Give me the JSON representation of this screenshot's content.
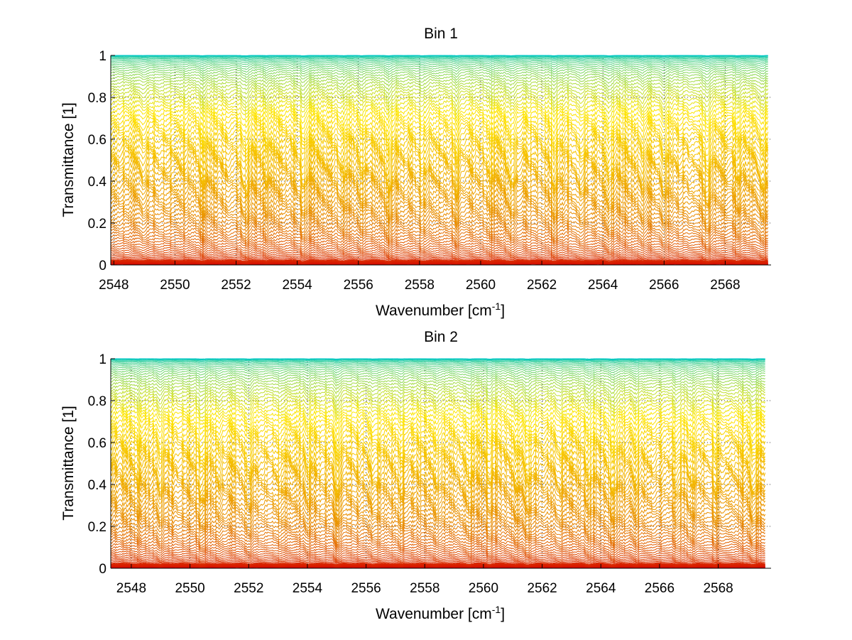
{
  "chart_data": [
    {
      "type": "line",
      "title": "Bin 1",
      "xlabel": "Wavenumber [cm",
      "xlabel_sup": "-1",
      "xlabel_end": "]",
      "ylabel": "Transmittance [1]",
      "xlim": [
        2547.9,
        2569.5
      ],
      "ylim": [
        0,
        1
      ],
      "x_data_range": [
        2547.9,
        2569.4
      ],
      "xticks": [
        2548,
        2550,
        2552,
        2554,
        2556,
        2558,
        2560,
        2562,
        2564,
        2566,
        2568
      ],
      "yticks": [
        0,
        0.2,
        0.4,
        0.6,
        0.8,
        1
      ],
      "ytick_labels": [
        "0",
        "0.2",
        "0.4",
        "0.6",
        "0.8",
        "1"
      ],
      "grid": true,
      "series_count": 80,
      "series_levels_min": 0.005,
      "series_levels_max": 1.0,
      "color_scale": [
        "#d40000",
        "#e88a00",
        "#ffe600",
        "#00c8c8"
      ],
      "absorption_lines": [
        2549.0,
        2550.9,
        2552.3,
        2553.0,
        2554.2,
        2555.5,
        2556.1,
        2557.0,
        2558.1,
        2559.2,
        2560.3,
        2561.0,
        2562.4,
        2563.3,
        2564.2,
        2565.3,
        2566.0,
        2567.4,
        2568.4,
        2569.2
      ]
    },
    {
      "type": "line",
      "title": "Bin 2",
      "xlabel": "Wavenumber [cm",
      "xlabel_sup": "-1",
      "xlabel_end": "]",
      "ylabel": "Transmittance [1]",
      "xlim": [
        2547.3,
        2569.8
      ],
      "ylim": [
        0,
        1
      ],
      "x_data_range": [
        2547.3,
        2569.6
      ],
      "xticks": [
        2548,
        2550,
        2552,
        2554,
        2556,
        2558,
        2560,
        2562,
        2564,
        2566,
        2568
      ],
      "yticks": [
        0,
        0.2,
        0.4,
        0.6,
        0.8,
        1
      ],
      "ytick_labels": [
        "0",
        "0.2",
        "0.4",
        "0.6",
        "0.8",
        "1"
      ],
      "grid": true,
      "series_count": 80,
      "series_levels_min": 0.005,
      "series_levels_max": 1.0,
      "color_scale": [
        "#d40000",
        "#e88a00",
        "#ffe600",
        "#00c8c8"
      ],
      "absorption_lines": [
        2548.2,
        2549.0,
        2550.4,
        2551.0,
        2552.0,
        2553.1,
        2554.0,
        2555.0,
        2556.3,
        2557.2,
        2558.4,
        2559.5,
        2560.2,
        2561.1,
        2561.5,
        2562.6,
        2563.6,
        2564.4,
        2565.2,
        2566.6,
        2567.1,
        2567.9,
        2569.2
      ]
    }
  ]
}
